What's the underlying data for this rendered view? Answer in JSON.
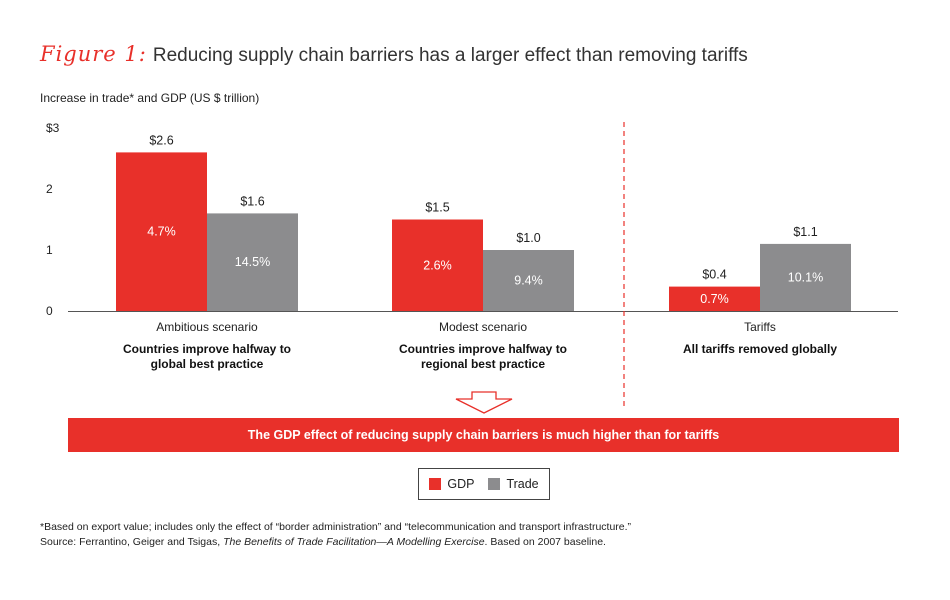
{
  "figure": {
    "label": "Figure 1:",
    "title": "Reducing supply chain barriers has a larger effect than removing tariffs"
  },
  "axis_caption": "Increase in trade* and GDP (US $ trillion)",
  "colors": {
    "gdp": "#e8302a",
    "trade": "#8c8c8e",
    "divider": "#e8302a"
  },
  "chart_data": {
    "type": "bar",
    "title": "Reducing supply chain barriers has a larger effect than removing tariffs",
    "ylabel": "Increase in trade* and GDP (US $ trillion)",
    "ylim": [
      0,
      3
    ],
    "yticks": [
      {
        "value": 0,
        "label": "0"
      },
      {
        "value": 1,
        "label": "1"
      },
      {
        "value": 2,
        "label": "2"
      },
      {
        "value": 3,
        "label": "$3"
      }
    ],
    "categories": [
      {
        "name": "Ambitious scenario",
        "subtitle_lines": [
          "Countries improve halfway to",
          "global best practice"
        ]
      },
      {
        "name": "Modest scenario",
        "subtitle_lines": [
          "Countries improve halfway to",
          "regional best practice"
        ]
      },
      {
        "name": "Tariffs",
        "subtitle_lines": [
          "All tariffs removed globally"
        ]
      }
    ],
    "series": [
      {
        "name": "GDP",
        "values": [
          2.6,
          1.5,
          0.4
        ],
        "value_labels": [
          "$2.6",
          "$1.5",
          "$0.4"
        ],
        "inner_labels": [
          "4.7%",
          "2.6%",
          "0.7%"
        ]
      },
      {
        "name": "Trade",
        "values": [
          1.6,
          1.0,
          1.1
        ],
        "value_labels": [
          "$1.6",
          "$1.0",
          "$1.1"
        ],
        "inner_labels": [
          "14.5%",
          "9.4%",
          "10.1%"
        ]
      }
    ],
    "legend": [
      "GDP",
      "Trade"
    ]
  },
  "conclusion": "The GDP effect of reducing supply chain barriers is much higher than for tariffs",
  "footnote": {
    "line1": "*Based on export value; includes only the effect of “border administration” and “telecommunication and transport infrastructure.”",
    "source_prefix": "Source: Ferrantino, Geiger and Tsigas, ",
    "source_title": "The Benefits of Trade Facilitation—A Modelling Exercise",
    "source_suffix": ". Based on 2007 baseline."
  }
}
